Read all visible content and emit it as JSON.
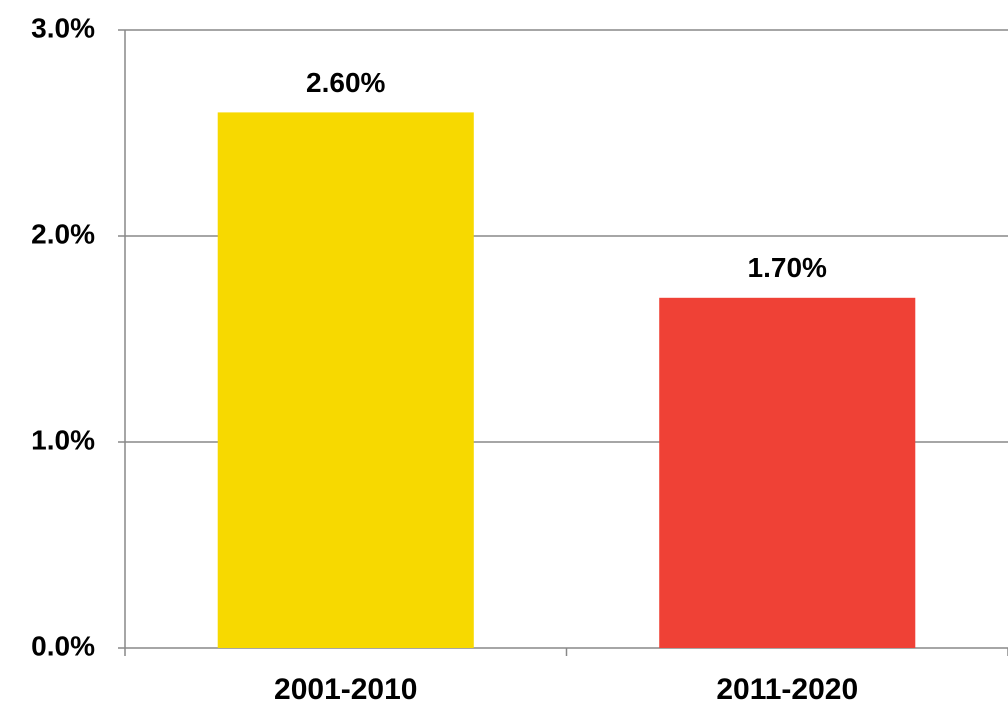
{
  "chart_data": {
    "type": "bar",
    "categories": [
      "2001-2010",
      "2011-2020"
    ],
    "values": [
      2.6,
      1.7
    ],
    "value_labels": [
      "2.60%",
      "1.70%"
    ],
    "colors": [
      "#f7d900",
      "#ef4136"
    ],
    "ylim": [
      0,
      3
    ],
    "yticks": [
      {
        "value": 0,
        "label": "0.0%"
      },
      {
        "value": 1,
        "label": "1.0%"
      },
      {
        "value": 2,
        "label": "2.0%"
      },
      {
        "value": 3,
        "label": "3.0%"
      }
    ],
    "grid": true
  }
}
